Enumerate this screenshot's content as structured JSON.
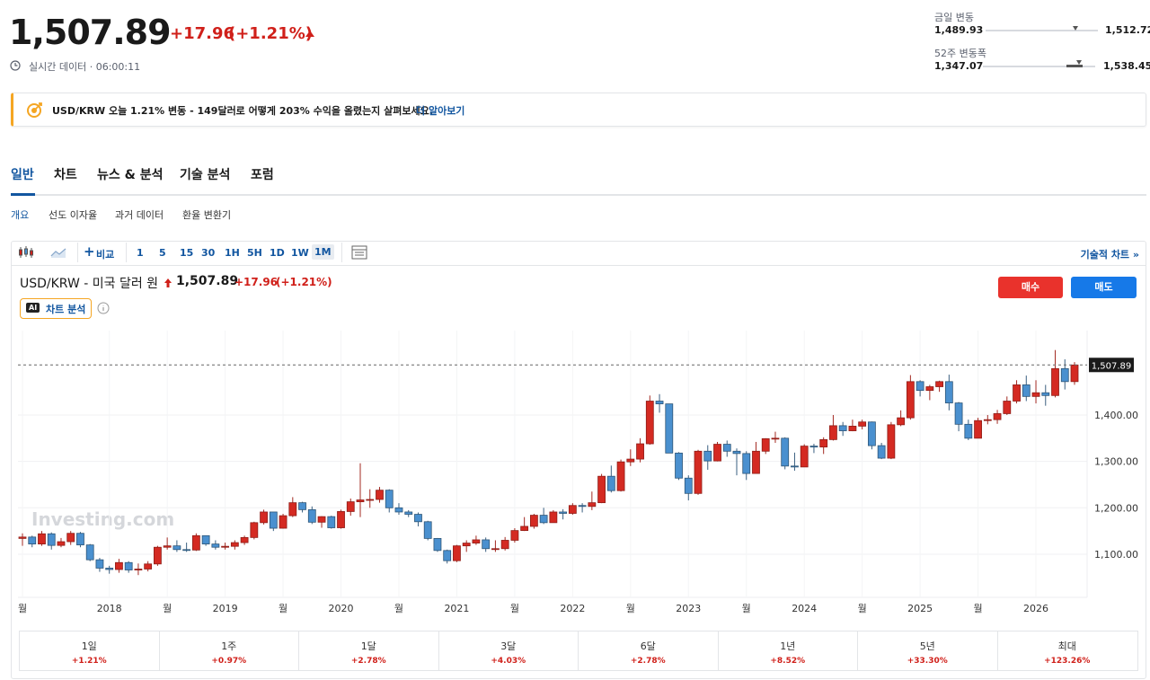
{
  "header": {
    "price": "1,507.89",
    "change": "+17.96",
    "change_pct": "(+1.21%)",
    "realtime": "실시간 데이터 · 06:00:11",
    "day_range": {
      "label": "금일 변동",
      "low": "1,489.93",
      "high": "1,512.72"
    },
    "week52_range": {
      "label": "52주 변동폭",
      "low": "1,347.07",
      "high": "1,538.45"
    }
  },
  "banner": {
    "text": "USD/KRW 오늘 1.21% 변동 - 149달러로 어떻게 203% 수익을 올렸는지 살펴보세요.",
    "link": "더 알아보기"
  },
  "tabs": [
    "일반",
    "차트",
    "뉴스 & 분석",
    "기술 분석",
    "포럼"
  ],
  "subtabs": [
    "개요",
    "선도 이자율",
    "과거 데이터",
    "환율 변환기"
  ],
  "toolbar": {
    "compare": "비교",
    "intervals": [
      "1",
      "5",
      "15",
      "30",
      "1H",
      "5H",
      "1D",
      "1W",
      "1M"
    ],
    "advanced": "기술적 차트 »"
  },
  "chart_header": {
    "name": "USD/KRW - 미국 달러 원",
    "price": "1,507.89",
    "change": "+17.96",
    "change_pct": "(+1.21%)",
    "ai_badge": "AI",
    "ai_button": "차트 분석",
    "buy": "매수",
    "sell": "매도"
  },
  "chart_data": {
    "type": "candlestick",
    "watermark": "Investing.com",
    "up_color": "#d42a22",
    "down_color": "#4a90cf",
    "categories": [
      "월",
      null,
      null,
      null,
      null,
      null,
      null,
      null,
      null,
      "2018",
      null,
      null,
      null,
      null,
      null,
      "월",
      null,
      null,
      null,
      null,
      null,
      "2019",
      null,
      null,
      null,
      null,
      null,
      "월",
      null,
      null,
      null,
      null,
      null,
      "2020",
      null,
      null,
      null,
      null,
      null,
      "월",
      null,
      null,
      null,
      null,
      null,
      "2021",
      null,
      null,
      null,
      null,
      null,
      "월",
      null,
      null,
      null,
      null,
      null,
      "2022",
      null,
      null,
      null,
      null,
      null,
      "월",
      null,
      null,
      null,
      null,
      null,
      "2023",
      null,
      null,
      null,
      null,
      null,
      "월",
      null,
      null,
      null,
      null,
      null,
      "2024",
      null,
      null,
      null,
      null,
      null,
      "월",
      null,
      null,
      null,
      null,
      null,
      "2025",
      null,
      null,
      null,
      null,
      null,
      "월",
      null,
      null,
      null,
      null,
      null,
      "2026",
      null,
      null,
      null,
      null
    ],
    "open": [
      1134,
      1137,
      1122,
      1144,
      1119,
      1127,
      1145,
      1120,
      1088,
      1070,
      1067,
      1082,
      1066,
      1068,
      1079,
      1115,
      1118,
      1110,
      1109,
      1140,
      1122,
      1115,
      1117,
      1125,
      1136,
      1168,
      1191,
      1156,
      1183,
      1211,
      1196,
      1169,
      1181,
      1157,
      1192,
      1213,
      1217,
      1218,
      1238,
      1200,
      1191,
      1186,
      1170,
      1134,
      1108,
      1086,
      1118,
      1124,
      1131,
      1112,
      1112,
      1130,
      1151,
      1160,
      1184,
      1168,
      1191,
      1188,
      1205,
      1203,
      1211,
      1268,
      1237,
      1299,
      1305,
      1338,
      1430,
      1424,
      1318,
      1264,
      1231,
      1322,
      1301,
      1337,
      1322,
      1317,
      1274,
      1322,
      1349,
      1350,
      1290,
      1288,
      1333,
      1331,
      1347,
      1377,
      1366,
      1376,
      1385,
      1334,
      1307,
      1379,
      1394,
      1472,
      1453,
      1461,
      1472,
      1426,
      1380,
      1350,
      1388,
      1390,
      1403,
      1430,
      1465,
      1440,
      1448,
      1442,
      1500,
      1472
    ],
    "high": [
      1145,
      1140,
      1150,
      1147,
      1135,
      1150,
      1148,
      1122,
      1092,
      1075,
      1090,
      1085,
      1080,
      1085,
      1118,
      1136,
      1130,
      1125,
      1145,
      1140,
      1130,
      1125,
      1130,
      1140,
      1170,
      1196,
      1190,
      1187,
      1223,
      1213,
      1203,
      1182,
      1183,
      1196,
      1220,
      1296,
      1240,
      1245,
      1240,
      1210,
      1195,
      1190,
      1172,
      1135,
      1110,
      1120,
      1130,
      1140,
      1136,
      1130,
      1137,
      1156,
      1180,
      1187,
      1200,
      1195,
      1197,
      1210,
      1210,
      1235,
      1273,
      1291,
      1304,
      1326,
      1350,
      1442,
      1445,
      1424,
      1320,
      1270,
      1325,
      1335,
      1342,
      1345,
      1328,
      1322,
      1342,
      1350,
      1364,
      1352,
      1319,
      1337,
      1338,
      1352,
      1400,
      1385,
      1390,
      1390,
      1386,
      1340,
      1385,
      1410,
      1486,
      1475,
      1465,
      1474,
      1487,
      1428,
      1390,
      1394,
      1400,
      1411,
      1440,
      1475,
      1485,
      1475,
      1465,
      1540,
      1520,
      1514
    ],
    "low": [
      1118,
      1115,
      1118,
      1110,
      1115,
      1120,
      1115,
      1085,
      1062,
      1058,
      1060,
      1060,
      1055,
      1063,
      1075,
      1110,
      1105,
      1105,
      1107,
      1118,
      1110,
      1110,
      1110,
      1120,
      1132,
      1164,
      1150,
      1155,
      1180,
      1190,
      1165,
      1157,
      1155,
      1155,
      1183,
      1180,
      1200,
      1211,
      1190,
      1185,
      1180,
      1160,
      1130,
      1105,
      1080,
      1083,
      1105,
      1120,
      1105,
      1105,
      1108,
      1125,
      1150,
      1155,
      1165,
      1168,
      1175,
      1185,
      1190,
      1195,
      1210,
      1233,
      1235,
      1290,
      1298,
      1336,
      1405,
      1318,
      1260,
      1216,
      1228,
      1282,
      1300,
      1310,
      1270,
      1260,
      1274,
      1316,
      1340,
      1283,
      1280,
      1288,
      1318,
      1316,
      1345,
      1355,
      1365,
      1369,
      1326,
      1305,
      1305,
      1376,
      1390,
      1440,
      1432,
      1450,
      1410,
      1365,
      1346,
      1350,
      1380,
      1381,
      1400,
      1425,
      1430,
      1425,
      1420,
      1438,
      1455,
      1465
    ],
    "close": [
      1137,
      1122,
      1144,
      1119,
      1127,
      1145,
      1120,
      1088,
      1070,
      1067,
      1082,
      1066,
      1068,
      1079,
      1115,
      1118,
      1110,
      1109,
      1140,
      1122,
      1115,
      1117,
      1125,
      1136,
      1168,
      1191,
      1156,
      1183,
      1211,
      1196,
      1169,
      1181,
      1157,
      1192,
      1213,
      1217,
      1218,
      1238,
      1200,
      1191,
      1186,
      1170,
      1134,
      1108,
      1086,
      1118,
      1124,
      1131,
      1112,
      1112,
      1130,
      1151,
      1160,
      1184,
      1168,
      1191,
      1188,
      1205,
      1203,
      1211,
      1268,
      1237,
      1299,
      1305,
      1338,
      1430,
      1424,
      1318,
      1264,
      1231,
      1322,
      1301,
      1337,
      1322,
      1317,
      1274,
      1322,
      1349,
      1350,
      1290,
      1288,
      1333,
      1331,
      1347,
      1377,
      1366,
      1376,
      1385,
      1334,
      1307,
      1379,
      1394,
      1472,
      1453,
      1461,
      1472,
      1426,
      1380,
      1350,
      1388,
      1390,
      1403,
      1430,
      1465,
      1440,
      1448,
      1442,
      1500,
      1472,
      1507.89
    ],
    "ylim": [
      1007,
      1582
    ],
    "yticks": [
      {
        "value": 1100,
        "label": "1,100.00"
      },
      {
        "value": 1200,
        "label": "1,200.00"
      },
      {
        "value": 1300,
        "label": "1,300.00"
      },
      {
        "value": 1400,
        "label": "1,400.00"
      }
    ],
    "grid": true
  },
  "performance": [
    {
      "period": "1일",
      "change": "+1.21%"
    },
    {
      "period": "1주",
      "change": "+0.97%"
    },
    {
      "period": "1달",
      "change": "+2.78%"
    },
    {
      "period": "3달",
      "change": "+4.03%"
    },
    {
      "period": "6달",
      "change": "+2.78%"
    },
    {
      "period": "1년",
      "change": "+8.52%"
    },
    {
      "period": "5년",
      "change": "+33.30%"
    },
    {
      "period": "최대",
      "change": "+123.26%"
    }
  ]
}
